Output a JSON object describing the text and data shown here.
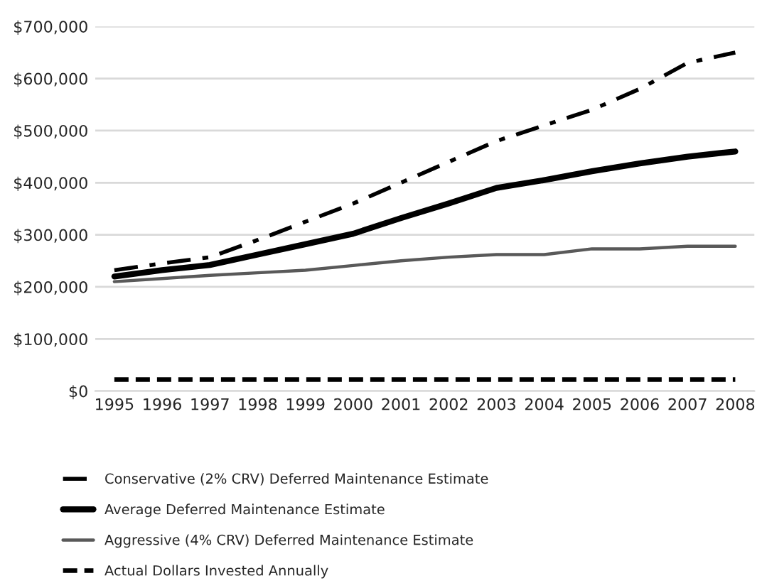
{
  "chart_data": {
    "type": "line",
    "categories": [
      "1995",
      "1996",
      "1997",
      "1998",
      "1999",
      "2000",
      "2001",
      "2002",
      "2003",
      "2004",
      "2005",
      "2006",
      "2007",
      "2008"
    ],
    "series": [
      {
        "name": "Conservative (2% CRV) Deferred Maintenance Estimate",
        "color": "#000000",
        "line_style": "dashdot",
        "values": [
          232000,
          245000,
          257000,
          290000,
          325000,
          360000,
          400000,
          440000,
          480000,
          510000,
          540000,
          580000,
          630000,
          650000
        ]
      },
      {
        "name": "Average Deferred Maintenance Estimate",
        "color": "#000000",
        "line_style": "solid",
        "values": [
          220000,
          232000,
          242000,
          262000,
          282000,
          302000,
          332000,
          360000,
          390000,
          405000,
          422000,
          437000,
          450000,
          460000
        ]
      },
      {
        "name": "Aggressive (4% CRV) Deferred Maintenance Estimate",
        "color": "#595959",
        "line_style": "solid",
        "values": [
          210000,
          216000,
          222000,
          227000,
          232000,
          241000,
          250000,
          257000,
          262000,
          262000,
          273000,
          273000,
          278000,
          278000
        ]
      },
      {
        "name": "Actual Dollars Invested Annually",
        "color": "#000000",
        "line_style": "dashed",
        "values": [
          22000,
          22000,
          22000,
          22000,
          22000,
          22000,
          22000,
          22000,
          22000,
          22000,
          22000,
          22000,
          22000,
          22000
        ]
      }
    ],
    "ylim": [
      0,
      700000
    ],
    "yticks": [
      {
        "value": 0,
        "label": "$0"
      },
      {
        "value": 100000,
        "label": "$100,000"
      },
      {
        "value": 200000,
        "label": "$200,000"
      },
      {
        "value": 300000,
        "label": "$300,000"
      },
      {
        "value": 400000,
        "label": "$400,000"
      },
      {
        "value": 500000,
        "label": "$500,000"
      },
      {
        "value": 600000,
        "label": "$600,000"
      },
      {
        "value": 700000,
        "label": "$700,000"
      }
    ],
    "grid": "y",
    "legend": "bottom",
    "marker": "none"
  }
}
